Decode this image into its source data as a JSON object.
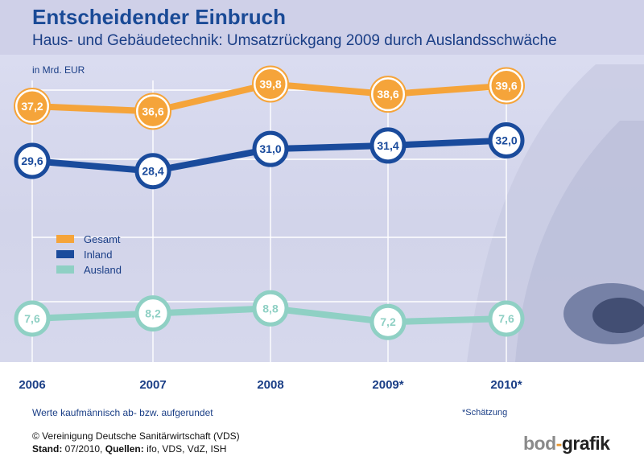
{
  "header": {
    "title": "Entscheidender Einbruch",
    "subtitle": "Haus- und Gebäudetechnik: Umsatzrückgang 2009 durch Auslandsschwäche",
    "unit": "in Mrd. EUR"
  },
  "colors": {
    "gesamt": "#f5a43a",
    "inland": "#1a4b9c",
    "ausland": "#8fd0c4",
    "header_bg": "#cfd0e8",
    "title": "#1a4a96"
  },
  "chart_data": {
    "type": "line",
    "categories": [
      "2006",
      "2007",
      "2008",
      "2009*",
      "2010*"
    ],
    "series": [
      {
        "name": "Gesamt",
        "values": [
          37.2,
          36.6,
          39.8,
          38.6,
          39.6
        ],
        "labels": [
          "37,2",
          "36,6",
          "39,8",
          "38,6",
          "39,6"
        ]
      },
      {
        "name": "Inland",
        "values": [
          29.6,
          28.4,
          31.0,
          31.4,
          32.0
        ],
        "labels": [
          "29,6",
          "28,4",
          "31,0",
          "31,4",
          "32,0"
        ]
      },
      {
        "name": "Ausland",
        "values": [
          7.6,
          8.2,
          8.8,
          7.2,
          7.6
        ],
        "labels": [
          "7,6",
          "8,2",
          "8,8",
          "7,2",
          "7,6"
        ]
      }
    ],
    "legend": [
      "Gesamt",
      "Inland",
      "Ausland"
    ],
    "legend_position": "left-middle",
    "grid": true,
    "ylabel": "in Mrd. EUR"
  },
  "footer": {
    "note": "Werte kaufmännisch ab- bzw. aufgerundet",
    "estimate_note": "*Schätzung",
    "copyright": "© Vereinigung Deutsche Sanitärwirtschaft (VDS)",
    "stand_label": "Stand:",
    "stand_value": " 07/2010, ",
    "sources_label": "Quellen:",
    "sources_value": " ifo, VDS, VdZ, ISH",
    "brand_part1": "bod",
    "brand_dash": "-",
    "brand_part2": "grafik"
  }
}
